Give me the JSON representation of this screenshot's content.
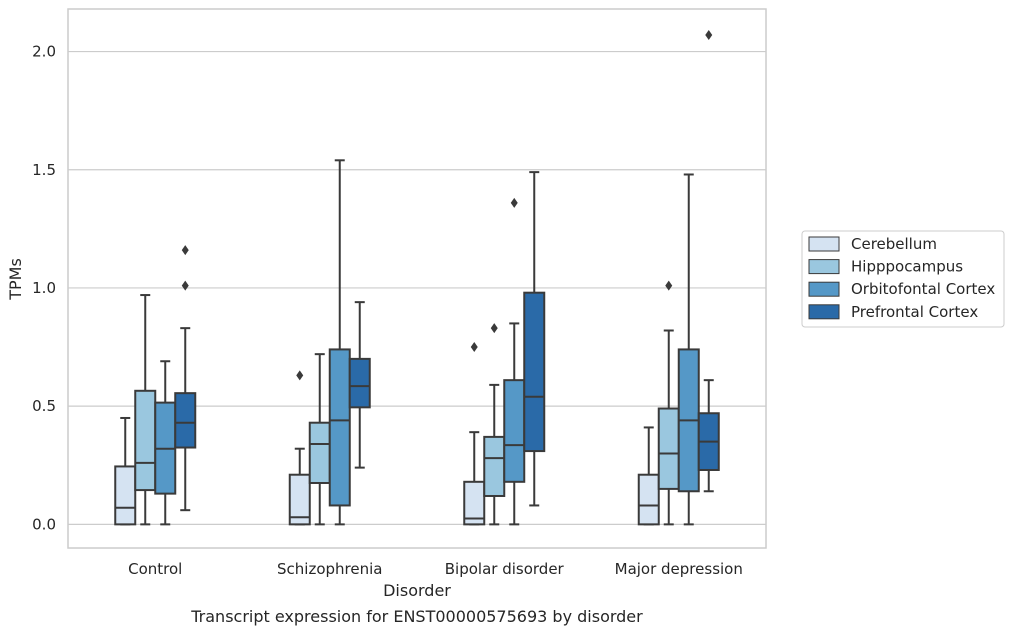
{
  "chart_data": {
    "type": "box",
    "caption": "Transcript expression for ENST00000575693 by disorder",
    "xlabel": "Disorder",
    "ylabel": "TPMs",
    "ylim": [
      -0.1,
      2.18
    ],
    "yticks": [
      "0.0",
      "0.5",
      "1.0",
      "1.5",
      "2.0"
    ],
    "ytick_values": [
      0.0,
      0.5,
      1.0,
      1.5,
      2.0
    ],
    "grid": "horizontal",
    "legend_position": "right",
    "categories": [
      "Control",
      "Schizophrenia",
      "Bipolar disorder",
      "Major depression"
    ],
    "series": [
      {
        "name": "Cerebellum",
        "color": "#d5e3f2",
        "boxes": [
          {
            "min": 0.0,
            "q1": 0.0,
            "median": 0.07,
            "q3": 0.245,
            "max": 0.45,
            "outliers": []
          },
          {
            "min": 0.0,
            "q1": 0.0,
            "median": 0.03,
            "q3": 0.21,
            "max": 0.32,
            "outliers": [
              0.63
            ]
          },
          {
            "min": 0.0,
            "q1": 0.0,
            "median": 0.025,
            "q3": 0.18,
            "max": 0.39,
            "outliers": [
              0.75
            ]
          },
          {
            "min": 0.0,
            "q1": 0.0,
            "median": 0.08,
            "q3": 0.21,
            "max": 0.41,
            "outliers": []
          }
        ]
      },
      {
        "name": "Hipppocampus",
        "color": "#9ac7df",
        "boxes": [
          {
            "min": 0.0,
            "q1": 0.145,
            "median": 0.26,
            "q3": 0.565,
            "max": 0.97,
            "outliers": []
          },
          {
            "min": 0.0,
            "q1": 0.175,
            "median": 0.34,
            "q3": 0.43,
            "max": 0.72,
            "outliers": []
          },
          {
            "min": 0.0,
            "q1": 0.12,
            "median": 0.28,
            "q3": 0.37,
            "max": 0.59,
            "outliers": [
              0.83
            ]
          },
          {
            "min": 0.0,
            "q1": 0.15,
            "median": 0.3,
            "q3": 0.49,
            "max": 0.82,
            "outliers": [
              1.01
            ]
          }
        ]
      },
      {
        "name": "Orbitofontal Cortex",
        "color": "#5598c7",
        "boxes": [
          {
            "min": 0.0,
            "q1": 0.13,
            "median": 0.32,
            "q3": 0.515,
            "max": 0.69,
            "outliers": []
          },
          {
            "min": 0.0,
            "q1": 0.08,
            "median": 0.44,
            "q3": 0.74,
            "max": 1.54,
            "outliers": []
          },
          {
            "min": 0.0,
            "q1": 0.18,
            "median": 0.335,
            "q3": 0.61,
            "max": 0.85,
            "outliers": [
              1.36
            ]
          },
          {
            "min": 0.0,
            "q1": 0.14,
            "median": 0.44,
            "q3": 0.74,
            "max": 1.48,
            "outliers": []
          }
        ]
      },
      {
        "name": "Prefrontal Cortex",
        "color": "#2a6aa8",
        "boxes": [
          {
            "min": 0.06,
            "q1": 0.325,
            "median": 0.43,
            "q3": 0.555,
            "max": 0.83,
            "outliers": [
              1.01,
              1.16
            ]
          },
          {
            "min": 0.24,
            "q1": 0.495,
            "median": 0.585,
            "q3": 0.7,
            "max": 0.94,
            "outliers": []
          },
          {
            "min": 0.08,
            "q1": 0.31,
            "median": 0.54,
            "q3": 0.98,
            "max": 1.49,
            "outliers": []
          },
          {
            "min": 0.14,
            "q1": 0.23,
            "median": 0.35,
            "q3": 0.47,
            "max": 0.61,
            "outliers": [
              2.07
            ]
          }
        ]
      }
    ]
  }
}
